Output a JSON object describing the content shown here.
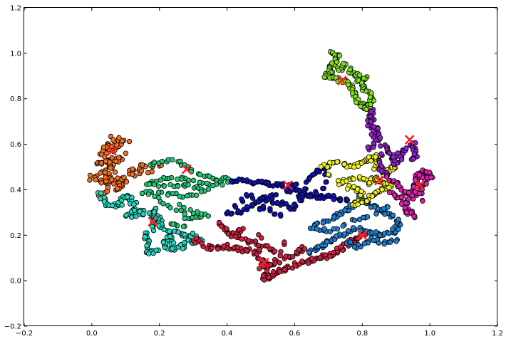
{
  "chart_data": {
    "type": "scatter",
    "title": "",
    "xlabel": "",
    "ylabel": "",
    "xlim": [
      -0.2,
      1.2
    ],
    "ylim": [
      -0.2,
      1.2
    ],
    "x_ticks": [
      -0.2,
      0.0,
      0.2,
      0.4,
      0.6,
      0.8,
      1.0,
      1.2
    ],
    "y_ticks": [
      -0.2,
      0.0,
      0.2,
      0.4,
      0.6,
      0.8,
      1.0,
      1.2
    ],
    "x_tick_labels": [
      "−0.2",
      "0.0",
      "0.2",
      "0.4",
      "0.6",
      "0.8",
      "1.0",
      "1.2"
    ],
    "y_tick_labels": [
      "−0.2",
      "0.0",
      "0.2",
      "0.4",
      "0.6",
      "0.8",
      "1.0",
      "1.2"
    ],
    "grid": false,
    "centroid_marker": {
      "symbol": "x",
      "color": "#ff2020"
    },
    "series": [
      {
        "color": "#f07020",
        "path": [
          [
            0.06,
            0.57
          ],
          [
            0.04,
            0.6
          ],
          [
            0.03,
            0.55
          ],
          [
            0.06,
            0.52
          ],
          [
            0.09,
            0.55
          ],
          [
            0.05,
            0.5
          ],
          [
            0.02,
            0.47
          ],
          [
            0.0,
            0.45
          ],
          [
            0.04,
            0.43
          ],
          [
            0.06,
            0.47
          ],
          [
            0.08,
            0.42
          ],
          [
            0.11,
            0.48
          ],
          [
            0.14,
            0.5
          ],
          [
            0.17,
            0.51
          ],
          [
            0.2,
            0.5
          ],
          [
            0.12,
            0.46
          ],
          [
            0.08,
            0.4
          ],
          [
            0.05,
            0.44
          ],
          [
            0.03,
            0.38
          ],
          [
            0.07,
            0.58
          ],
          [
            0.1,
            0.61
          ],
          [
            0.06,
            0.63
          ],
          [
            0.02,
            0.52
          ]
        ],
        "spread": 0.012,
        "copies": 2,
        "centroids": [
          [
            0.06,
            0.57
          ]
        ]
      },
      {
        "color": "#20d8c0",
        "path": [
          [
            0.02,
            0.38
          ],
          [
            0.05,
            0.34
          ],
          [
            0.08,
            0.33
          ],
          [
            0.1,
            0.37
          ],
          [
            0.12,
            0.36
          ],
          [
            0.13,
            0.32
          ],
          [
            0.11,
            0.28
          ],
          [
            0.13,
            0.3
          ],
          [
            0.15,
            0.3
          ],
          [
            0.18,
            0.28
          ],
          [
            0.2,
            0.27
          ],
          [
            0.18,
            0.24
          ],
          [
            0.16,
            0.2
          ],
          [
            0.17,
            0.16
          ],
          [
            0.16,
            0.12
          ],
          [
            0.2,
            0.13
          ],
          [
            0.22,
            0.17
          ],
          [
            0.24,
            0.21
          ],
          [
            0.23,
            0.14
          ],
          [
            0.26,
            0.14
          ],
          [
            0.29,
            0.17
          ],
          [
            0.32,
            0.18
          ],
          [
            0.3,
            0.2
          ],
          [
            0.27,
            0.2
          ],
          [
            0.22,
            0.22
          ],
          [
            0.19,
            0.25
          ],
          [
            0.18,
            0.31
          ]
        ],
        "spread": 0.01,
        "copies": 2,
        "centroids": [
          [
            0.18,
            0.26
          ]
        ]
      },
      {
        "color": "#20c878",
        "path": [
          [
            0.17,
            0.51
          ],
          [
            0.2,
            0.52
          ],
          [
            0.23,
            0.53
          ],
          [
            0.26,
            0.52
          ],
          [
            0.28,
            0.5
          ],
          [
            0.3,
            0.48
          ],
          [
            0.33,
            0.46
          ],
          [
            0.36,
            0.45
          ],
          [
            0.38,
            0.44
          ],
          [
            0.4,
            0.45
          ],
          [
            0.42,
            0.44
          ],
          [
            0.37,
            0.42
          ],
          [
            0.34,
            0.43
          ],
          [
            0.3,
            0.44
          ],
          [
            0.27,
            0.45
          ],
          [
            0.24,
            0.45
          ],
          [
            0.21,
            0.45
          ],
          [
            0.18,
            0.44
          ],
          [
            0.16,
            0.42
          ],
          [
            0.2,
            0.42
          ],
          [
            0.23,
            0.42
          ],
          [
            0.26,
            0.42
          ],
          [
            0.28,
            0.42
          ],
          [
            0.31,
            0.41
          ],
          [
            0.34,
            0.4
          ],
          [
            0.31,
            0.38
          ],
          [
            0.28,
            0.37
          ],
          [
            0.25,
            0.38
          ],
          [
            0.22,
            0.38
          ],
          [
            0.18,
            0.39
          ],
          [
            0.15,
            0.39
          ],
          [
            0.2,
            0.36
          ],
          [
            0.22,
            0.33
          ],
          [
            0.27,
            0.3
          ],
          [
            0.29,
            0.27
          ],
          [
            0.32,
            0.28
          ],
          [
            0.34,
            0.29
          ],
          [
            0.3,
            0.3
          ],
          [
            0.26,
            0.34
          ],
          [
            0.28,
            0.24
          ],
          [
            0.24,
            0.25
          ]
        ],
        "spread": 0.006,
        "copies": 1,
        "centroids": [
          [
            0.28,
            0.49
          ]
        ]
      },
      {
        "color": "#1010b0",
        "path": [
          [
            0.42,
            0.44
          ],
          [
            0.45,
            0.44
          ],
          [
            0.48,
            0.43
          ],
          [
            0.51,
            0.43
          ],
          [
            0.54,
            0.42
          ],
          [
            0.57,
            0.42
          ],
          [
            0.6,
            0.42
          ],
          [
            0.58,
            0.4
          ],
          [
            0.61,
            0.39
          ],
          [
            0.64,
            0.38
          ],
          [
            0.67,
            0.37
          ],
          [
            0.7,
            0.37
          ],
          [
            0.73,
            0.36
          ],
          [
            0.76,
            0.36
          ],
          [
            0.54,
            0.37
          ],
          [
            0.5,
            0.36
          ],
          [
            0.48,
            0.33
          ],
          [
            0.44,
            0.3
          ],
          [
            0.4,
            0.3
          ],
          [
            0.46,
            0.38
          ],
          [
            0.52,
            0.35
          ],
          [
            0.56,
            0.34
          ],
          [
            0.6,
            0.32
          ],
          [
            0.64,
            0.44
          ],
          [
            0.66,
            0.48
          ],
          [
            0.7,
            0.5
          ],
          [
            0.68,
            0.4
          ],
          [
            0.62,
            0.36
          ],
          [
            0.56,
            0.29
          ],
          [
            0.5,
            0.32
          ]
        ],
        "spread": 0.008,
        "copies": 2,
        "centroids": [
          [
            0.58,
            0.42
          ]
        ]
      },
      {
        "color": "#d02040",
        "path": [
          [
            0.3,
            0.18
          ],
          [
            0.34,
            0.15
          ],
          [
            0.37,
            0.14
          ],
          [
            0.4,
            0.15
          ],
          [
            0.43,
            0.14
          ],
          [
            0.46,
            0.13
          ],
          [
            0.49,
            0.12
          ],
          [
            0.51,
            0.08
          ],
          [
            0.52,
            0.04
          ],
          [
            0.51,
            0.01
          ],
          [
            0.53,
            0.02
          ],
          [
            0.55,
            0.04
          ],
          [
            0.57,
            0.05
          ],
          [
            0.6,
            0.07
          ],
          [
            0.63,
            0.08
          ],
          [
            0.66,
            0.09
          ],
          [
            0.68,
            0.1
          ],
          [
            0.7,
            0.11
          ],
          [
            0.72,
            0.12
          ],
          [
            0.74,
            0.14
          ],
          [
            0.76,
            0.16
          ],
          [
            0.78,
            0.18
          ],
          [
            0.8,
            0.2
          ],
          [
            0.55,
            0.12
          ],
          [
            0.53,
            0.14
          ],
          [
            0.49,
            0.16
          ],
          [
            0.46,
            0.18
          ],
          [
            0.42,
            0.2
          ],
          [
            0.4,
            0.22
          ],
          [
            0.37,
            0.25
          ],
          [
            0.55,
            0.08
          ],
          [
            0.5,
            0.06
          ],
          [
            0.57,
            0.1
          ],
          [
            0.6,
            0.12
          ],
          [
            0.62,
            0.14
          ],
          [
            0.44,
            0.22
          ]
        ],
        "spread": 0.01,
        "copies": 2,
        "centroids": [
          [
            0.51,
            0.08
          ],
          [
            0.8,
            0.2
          ]
        ]
      },
      {
        "color": "#2080d0",
        "path": [
          [
            0.64,
            0.12
          ],
          [
            0.67,
            0.14
          ],
          [
            0.69,
            0.16
          ],
          [
            0.72,
            0.19
          ],
          [
            0.75,
            0.21
          ],
          [
            0.78,
            0.23
          ],
          [
            0.81,
            0.22
          ],
          [
            0.84,
            0.21
          ],
          [
            0.86,
            0.2
          ],
          [
            0.89,
            0.21
          ],
          [
            0.91,
            0.24
          ],
          [
            0.9,
            0.27
          ],
          [
            0.87,
            0.3
          ],
          [
            0.84,
            0.32
          ],
          [
            0.81,
            0.34
          ],
          [
            0.79,
            0.37
          ],
          [
            0.76,
            0.31
          ],
          [
            0.73,
            0.29
          ],
          [
            0.7,
            0.27
          ],
          [
            0.67,
            0.25
          ],
          [
            0.65,
            0.23
          ],
          [
            0.7,
            0.22
          ],
          [
            0.77,
            0.26
          ],
          [
            0.82,
            0.28
          ],
          [
            0.88,
            0.33
          ],
          [
            0.9,
            0.18
          ],
          [
            0.86,
            0.16
          ],
          [
            0.83,
            0.18
          ],
          [
            0.79,
            0.15
          ],
          [
            0.76,
            0.17
          ]
        ],
        "spread": 0.008,
        "copies": 2,
        "centroids": [
          [
            0.8,
            0.2
          ]
        ]
      },
      {
        "color": "#f0f020",
        "path": [
          [
            0.73,
            0.43
          ],
          [
            0.76,
            0.44
          ],
          [
            0.79,
            0.45
          ],
          [
            0.82,
            0.44
          ],
          [
            0.84,
            0.45
          ],
          [
            0.86,
            0.43
          ],
          [
            0.88,
            0.42
          ],
          [
            0.86,
            0.4
          ],
          [
            0.84,
            0.38
          ],
          [
            0.82,
            0.36
          ],
          [
            0.8,
            0.35
          ],
          [
            0.78,
            0.33
          ],
          [
            0.83,
            0.49
          ],
          [
            0.85,
            0.52
          ],
          [
            0.84,
            0.55
          ],
          [
            0.82,
            0.53
          ],
          [
            0.8,
            0.52
          ],
          [
            0.77,
            0.5
          ],
          [
            0.74,
            0.52
          ],
          [
            0.71,
            0.52
          ],
          [
            0.68,
            0.5
          ],
          [
            0.76,
            0.41
          ],
          [
            0.79,
            0.4
          ],
          [
            0.87,
            0.47
          ],
          [
            0.89,
            0.5
          ]
        ],
        "spread": 0.008,
        "copies": 2,
        "centroids": [
          [
            0.85,
            0.44
          ]
        ]
      },
      {
        "color": "#9020c8",
        "path": [
          [
            0.82,
            0.58
          ],
          [
            0.84,
            0.62
          ],
          [
            0.83,
            0.66
          ],
          [
            0.82,
            0.7
          ],
          [
            0.83,
            0.74
          ],
          [
            0.82,
            0.77
          ],
          [
            0.84,
            0.67
          ],
          [
            0.86,
            0.6
          ],
          [
            0.88,
            0.57
          ],
          [
            0.89,
            0.54
          ],
          [
            0.9,
            0.51
          ],
          [
            0.91,
            0.56
          ],
          [
            0.93,
            0.58
          ],
          [
            0.95,
            0.6
          ],
          [
            0.96,
            0.56
          ],
          [
            0.95,
            0.53
          ],
          [
            0.86,
            0.55
          ],
          [
            0.85,
            0.5
          ],
          [
            0.87,
            0.47
          ]
        ],
        "spread": 0.008,
        "copies": 2,
        "centroids": [
          [
            0.94,
            0.62
          ]
        ]
      },
      {
        "color": "#e020b0",
        "path": [
          [
            0.88,
            0.45
          ],
          [
            0.9,
            0.43
          ],
          [
            0.92,
            0.4
          ],
          [
            0.94,
            0.38
          ],
          [
            0.96,
            0.39
          ],
          [
            0.98,
            0.42
          ],
          [
            0.99,
            0.45
          ],
          [
            0.97,
            0.47
          ],
          [
            0.95,
            0.45
          ],
          [
            0.93,
            0.35
          ],
          [
            0.92,
            0.32
          ],
          [
            0.94,
            0.3
          ],
          [
            0.95,
            0.28
          ],
          [
            0.91,
            0.37
          ],
          [
            0.89,
            0.38
          ],
          [
            0.97,
            0.36
          ],
          [
            0.96,
            0.41
          ],
          [
            0.98,
            0.48
          ],
          [
            1.0,
            0.46
          ]
        ],
        "spread": 0.01,
        "copies": 2,
        "centroids": [
          [
            0.97,
            0.42
          ]
        ]
      },
      {
        "color": "#80e020",
        "path": [
          [
            0.71,
            1.0
          ],
          [
            0.73,
            0.99
          ],
          [
            0.72,
            0.96
          ],
          [
            0.7,
            0.94
          ],
          [
            0.71,
            0.91
          ],
          [
            0.69,
            0.9
          ],
          [
            0.72,
            0.89
          ],
          [
            0.74,
            0.88
          ],
          [
            0.76,
            0.87
          ],
          [
            0.77,
            0.84
          ],
          [
            0.78,
            0.81
          ],
          [
            0.79,
            0.78
          ],
          [
            0.81,
            0.76
          ],
          [
            0.83,
            0.79
          ],
          [
            0.82,
            0.82
          ],
          [
            0.8,
            0.85
          ],
          [
            0.79,
            0.88
          ],
          [
            0.78,
            0.91
          ],
          [
            0.73,
            0.93
          ],
          [
            0.75,
            0.95
          ],
          [
            0.81,
            0.89
          ]
        ],
        "spread": 0.007,
        "copies": 2,
        "centroids": [
          [
            0.74,
            0.88
          ]
        ]
      }
    ]
  }
}
